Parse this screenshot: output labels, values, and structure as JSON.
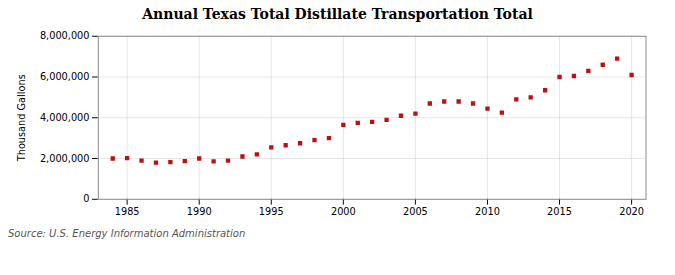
{
  "chart_data": {
    "type": "scatter",
    "title": "Annual Texas Total Distillate Transportation Total",
    "ylabel": "Thousand Gallons",
    "source": "Source: U.S. Energy Information Administration",
    "x": [
      1984,
      1985,
      1986,
      1987,
      1988,
      1989,
      1990,
      1991,
      1992,
      1993,
      1994,
      1995,
      1996,
      1997,
      1998,
      1999,
      2000,
      2001,
      2002,
      2003,
      2004,
      2005,
      2006,
      2007,
      2008,
      2009,
      2010,
      2011,
      2012,
      2013,
      2014,
      2015,
      2016,
      2017,
      2018,
      2019,
      2020
    ],
    "values": [
      2000000,
      2020000,
      1900000,
      1800000,
      1820000,
      1870000,
      2000000,
      1860000,
      1900000,
      2100000,
      2200000,
      2550000,
      2650000,
      2750000,
      2900000,
      3000000,
      3650000,
      3750000,
      3800000,
      3900000,
      4100000,
      4200000,
      4700000,
      4800000,
      4800000,
      4700000,
      4450000,
      4250000,
      4900000,
      5000000,
      5350000,
      6000000,
      6050000,
      6300000,
      6600000,
      6900000,
      6100000
    ],
    "color": "#bb1111",
    "marker": "square",
    "xlim": [
      1983,
      2021
    ],
    "ylim": [
      0,
      8000000
    ],
    "xticks": [
      1985,
      1990,
      1995,
      2000,
      2005,
      2010,
      2015,
      2020
    ],
    "yticks": [
      0,
      {
        "value": 2000000,
        "label": "2,000,000"
      },
      {
        "value": 4000000,
        "label": "4,000,000"
      },
      {
        "value": 6000000,
        "label": "6,000,000"
      },
      {
        "value": 8000000,
        "label": "8,000,000"
      }
    ],
    "grid": true
  }
}
